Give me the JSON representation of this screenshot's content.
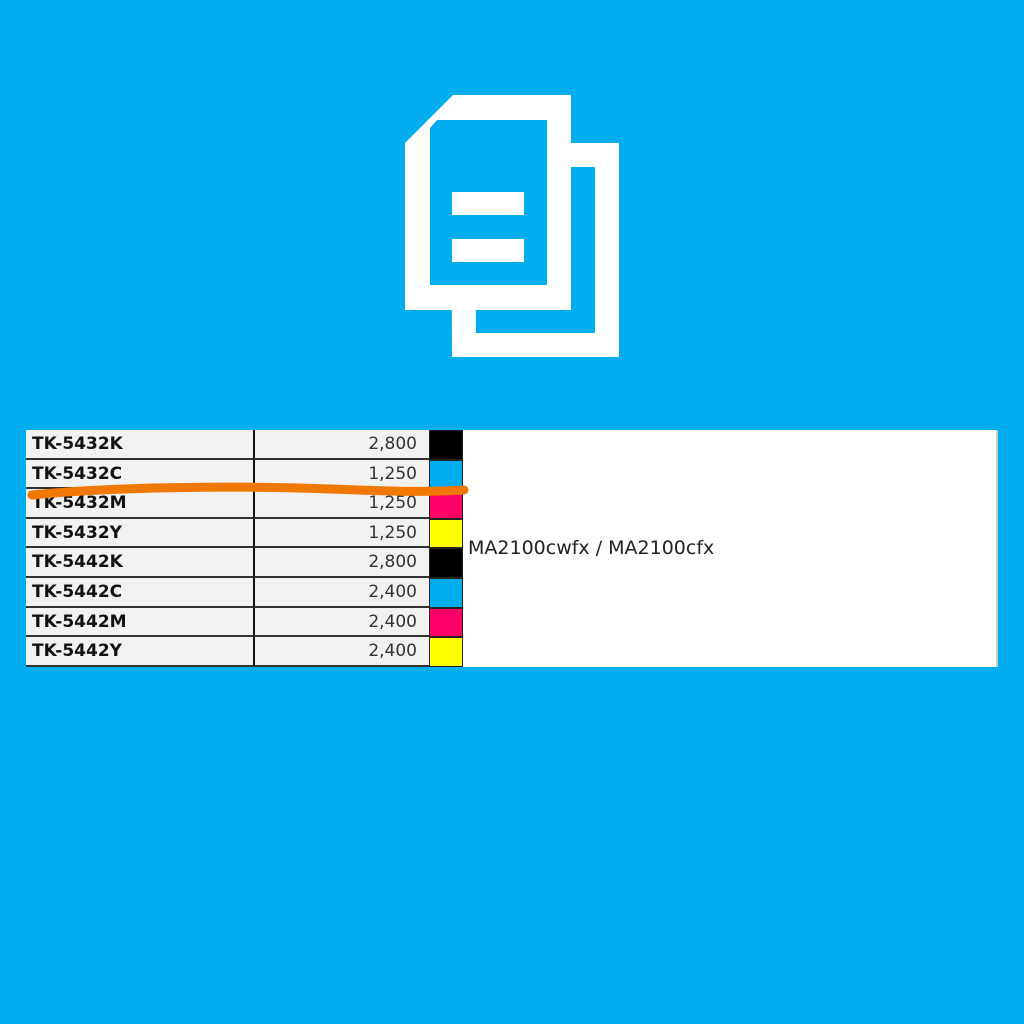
{
  "icon": "copy-documents-icon",
  "colors": {
    "background": "#00adef",
    "K": "#000000",
    "C": "#00adef",
    "M": "#ff0066",
    "Y": "#ffff00",
    "annotation": "#f07800"
  },
  "table": {
    "rows": [
      {
        "code": "TK-5432K",
        "value": "2,800",
        "color": "K"
      },
      {
        "code": "TK-5432C",
        "value": "1,250",
        "color": "C"
      },
      {
        "code": "TK-5432M",
        "value": "1,250",
        "color": "M"
      },
      {
        "code": "TK-5432Y",
        "value": "1,250",
        "color": "Y"
      },
      {
        "code": "TK-5442K",
        "value": "2,800",
        "color": "K"
      },
      {
        "code": "TK-5442C",
        "value": "2,400",
        "color": "C"
      },
      {
        "code": "TK-5442M",
        "value": "2,400",
        "color": "M"
      },
      {
        "code": "TK-5442Y",
        "value": "2,400",
        "color": "Y"
      }
    ],
    "model": "MA2100cwfx / MA2100cfx"
  }
}
